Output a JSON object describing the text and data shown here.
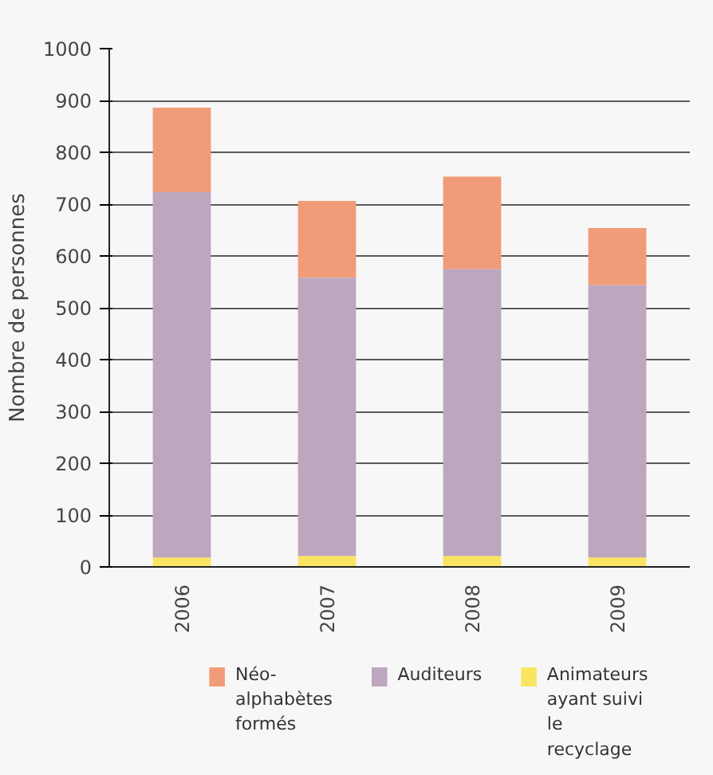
{
  "chart_data": {
    "type": "bar",
    "stacked": true,
    "ylabel": "Nombre de personnes",
    "categories": [
      "2006",
      "2007",
      "2008",
      "2009"
    ],
    "series": [
      {
        "name": "Animateurs ayant suivi le recyclage",
        "color": "#fbe461",
        "values": [
          18,
          21,
          21,
          18
        ]
      },
      {
        "name": "Auditeurs",
        "color": "#bca7bf",
        "values": [
          705,
          537,
          554,
          526
        ]
      },
      {
        "name": "Néo-alphabètes formés",
        "color": "#f19c78",
        "values": [
          163,
          148,
          178,
          110
        ]
      }
    ],
    "ylim": [
      0,
      1000
    ],
    "yticks": [
      0,
      100,
      200,
      300,
      400,
      500,
      600,
      700,
      800,
      900,
      1000
    ],
    "grid": "y",
    "legend": "bottom"
  }
}
